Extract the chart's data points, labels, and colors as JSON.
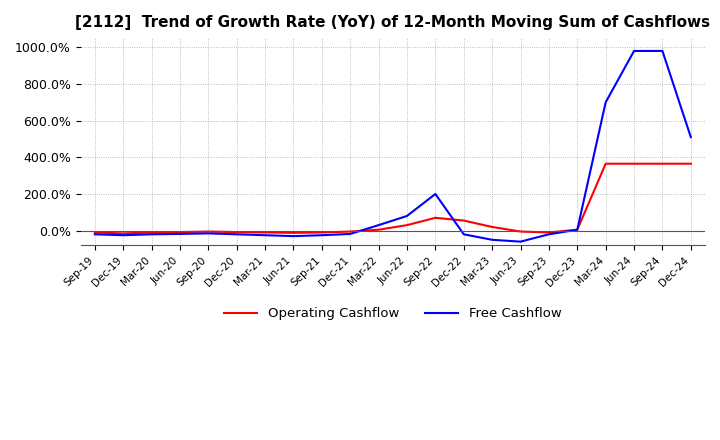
{
  "title": "[2112]  Trend of Growth Rate (YoY) of 12-Month Moving Sum of Cashflows",
  "title_fontsize": 11,
  "ylim": [
    -80,
    1050
  ],
  "yticks": [
    0,
    200,
    400,
    600,
    800,
    1000
  ],
  "ytick_labels": [
    "0.0%",
    "200.0%",
    "400.0%",
    "600.0%",
    "800.0%",
    "1000.0%"
  ],
  "background_color": "#ffffff",
  "grid_color": "#aaaaaa",
  "legend_entries": [
    "Operating Cashflow",
    "Free Cashflow"
  ],
  "legend_colors": [
    "#ff0000",
    "#0000ff"
  ],
  "x_labels": [
    "Sep-19",
    "Dec-19",
    "Mar-20",
    "Jun-20",
    "Sep-20",
    "Dec-20",
    "Mar-21",
    "Jun-21",
    "Sep-21",
    "Dec-21",
    "Mar-22",
    "Jun-22",
    "Sep-22",
    "Dec-22",
    "Mar-23",
    "Jun-23",
    "Sep-23",
    "Dec-23",
    "Mar-24",
    "Jun-24",
    "Sep-24",
    "Dec-24"
  ],
  "operating_cashflow": [
    -10,
    -15,
    -10,
    -8,
    -5,
    -8,
    -10,
    -12,
    -10,
    -5,
    5,
    30,
    70,
    55,
    20,
    -5,
    -10,
    5,
    365,
    365,
    365,
    365
  ],
  "free_cashflow": [
    -20,
    -25,
    -20,
    -18,
    -15,
    -20,
    -25,
    -30,
    -25,
    -18,
    30,
    80,
    200,
    -20,
    -50,
    -60,
    -20,
    5,
    700,
    980,
    980,
    510
  ]
}
